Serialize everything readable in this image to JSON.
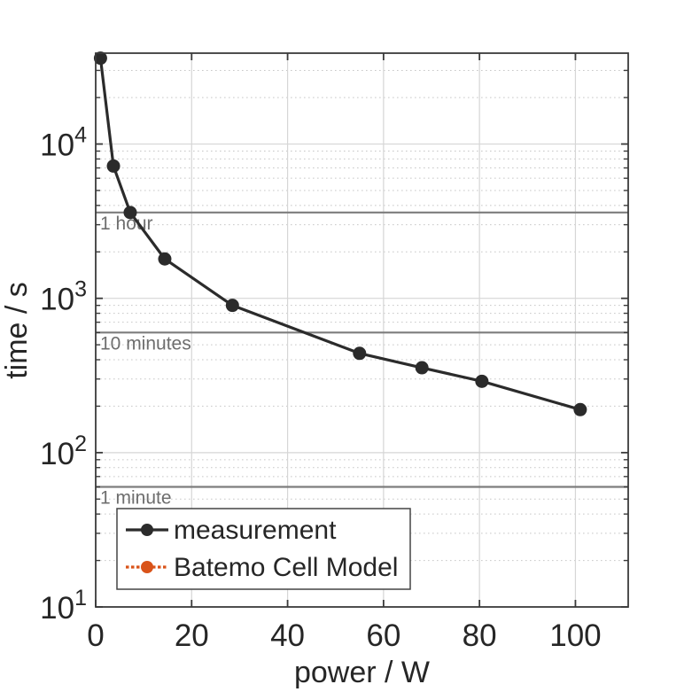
{
  "colors": {
    "background": "#ffffff",
    "axis": "#3a3a3a",
    "text": "#262626",
    "grid_major": "#d6d6d6",
    "grid_minor": "#c7c7c7",
    "reference_line": "#7d7d7d",
    "reference_text": "#6e6e6e",
    "legend_border": "#444444"
  },
  "chart_data": {
    "type": "line",
    "title": "",
    "xlabel": "power / W",
    "ylabel": "time / s",
    "x_scale": "linear",
    "y_scale": "log",
    "xlim": [
      0,
      111
    ],
    "ylim": [
      10,
      38800
    ],
    "x_ticks": [
      0,
      20,
      40,
      60,
      80,
      100
    ],
    "y_tick_exponents": [
      1,
      2,
      3,
      4
    ],
    "y_tick_labels": [
      "10^1",
      "10^2",
      "10^3",
      "10^4"
    ],
    "grid": {
      "vertical_major": true,
      "horizontal_major": true,
      "horizontal_minor": "dotted"
    },
    "reference_lines": [
      {
        "label": "1 hour",
        "seconds": 3600
      },
      {
        "label": "10 minutes",
        "seconds": 600
      },
      {
        "label": "1 minute",
        "seconds": 60
      }
    ],
    "series": [
      {
        "name": "measurement",
        "color": "#2b2b2b",
        "line_style": "solid",
        "marker": "circle",
        "power_w": [
          1,
          3.7,
          7.2,
          14.4,
          28.5,
          55,
          68,
          80.5,
          101
        ],
        "time_s": [
          36000,
          7200,
          3600,
          1800,
          900,
          440,
          355,
          290,
          190
        ]
      },
      {
        "name": "Batemo Cell Model",
        "color": "#d95319",
        "line_style": "dotted",
        "marker": "circle",
        "power_w": [],
        "time_s": [],
        "visible_in_plot": false
      }
    ],
    "legend": {
      "position": "lower-left",
      "entries": [
        "measurement",
        "Batemo Cell Model"
      ]
    }
  }
}
